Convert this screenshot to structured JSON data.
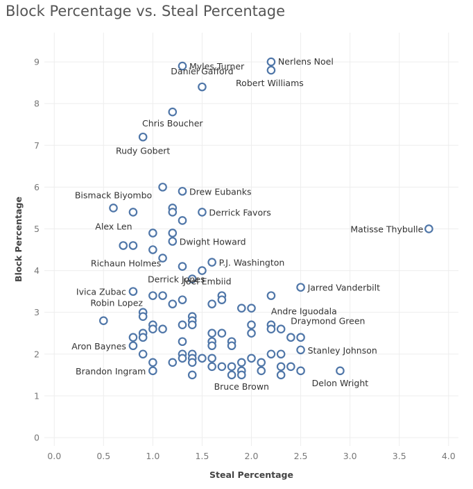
{
  "chart_data": {
    "type": "scatter",
    "title": "Block Percentage vs. Steal Percentage",
    "xlabel": "Steal Percentage",
    "ylabel": "Block Percentage",
    "xlim": [
      -0.1,
      4.1
    ],
    "ylim": [
      -0.2,
      9.7
    ],
    "xticks": [
      "0.0",
      "0.5",
      "1.0",
      "1.5",
      "2.0",
      "2.5",
      "3.0",
      "3.5",
      "4.0"
    ],
    "yticks": [
      "0",
      "1",
      "2",
      "3",
      "4",
      "5",
      "6",
      "7",
      "8",
      "9"
    ],
    "grid": true,
    "legend": "none",
    "marker_color": "#4f76a8",
    "points": [
      {
        "x": 2.2,
        "y": 9.0,
        "label": "Nerlens Noel"
      },
      {
        "x": 1.3,
        "y": 8.9,
        "label": "Myles Turner"
      },
      {
        "x": 2.2,
        "y": 8.8,
        "label": "Robert Williams"
      },
      {
        "x": 1.5,
        "y": 8.4,
        "label": "Daniel Gafford"
      },
      {
        "x": 1.2,
        "y": 7.8,
        "label": "Chris Boucher"
      },
      {
        "x": 0.9,
        "y": 7.2,
        "label": "Rudy Gobert"
      },
      {
        "x": 1.1,
        "y": 6.0,
        "label": ""
      },
      {
        "x": 1.3,
        "y": 5.9,
        "label": "Drew Eubanks"
      },
      {
        "x": 0.6,
        "y": 5.5,
        "label": "Bismack Biyombo"
      },
      {
        "x": 0.8,
        "y": 5.4,
        "label": "Alex Len"
      },
      {
        "x": 1.2,
        "y": 5.5,
        "label": ""
      },
      {
        "x": 1.2,
        "y": 5.4,
        "label": ""
      },
      {
        "x": 1.5,
        "y": 5.4,
        "label": "Derrick Favors"
      },
      {
        "x": 1.3,
        "y": 5.2,
        "label": ""
      },
      {
        "x": 3.8,
        "y": 5.0,
        "label": "Matisse Thybulle"
      },
      {
        "x": 1.0,
        "y": 4.9,
        "label": ""
      },
      {
        "x": 1.2,
        "y": 4.9,
        "label": ""
      },
      {
        "x": 1.2,
        "y": 4.7,
        "label": "Dwight Howard"
      },
      {
        "x": 0.7,
        "y": 4.6,
        "label": ""
      },
      {
        "x": 0.8,
        "y": 4.6,
        "label": ""
      },
      {
        "x": 1.0,
        "y": 4.5,
        "label": ""
      },
      {
        "x": 1.1,
        "y": 4.3,
        "label": "Richaun Holmes"
      },
      {
        "x": 1.6,
        "y": 4.2,
        "label": "P.J. Washington"
      },
      {
        "x": 1.3,
        "y": 4.1,
        "label": ""
      },
      {
        "x": 1.5,
        "y": 4.0,
        "label": ""
      },
      {
        "x": 1.4,
        "y": 3.8,
        "label": "Derrick Jones"
      },
      {
        "x": 2.5,
        "y": 3.6,
        "label": "Jarred Vanderbilt"
      },
      {
        "x": 0.8,
        "y": 3.5,
        "label": "Ivica Zubac"
      },
      {
        "x": 1.0,
        "y": 3.4,
        "label": ""
      },
      {
        "x": 1.1,
        "y": 3.4,
        "label": ""
      },
      {
        "x": 1.7,
        "y": 3.4,
        "label": "Joel Embiid"
      },
      {
        "x": 2.2,
        "y": 3.4,
        "label": ""
      },
      {
        "x": 1.3,
        "y": 3.3,
        "label": ""
      },
      {
        "x": 1.7,
        "y": 3.3,
        "label": ""
      },
      {
        "x": 1.2,
        "y": 3.2,
        "label": ""
      },
      {
        "x": 1.6,
        "y": 3.2,
        "label": ""
      },
      {
        "x": 1.9,
        "y": 3.1,
        "label": ""
      },
      {
        "x": 2.0,
        "y": 3.1,
        "label": ""
      },
      {
        "x": 0.9,
        "y": 3.0,
        "label": "Robin Lopez"
      },
      {
        "x": 0.9,
        "y": 2.9,
        "label": ""
      },
      {
        "x": 1.4,
        "y": 2.9,
        "label": ""
      },
      {
        "x": 0.5,
        "y": 2.8,
        "label": ""
      },
      {
        "x": 1.4,
        "y": 2.8,
        "label": ""
      },
      {
        "x": 1.0,
        "y": 2.7,
        "label": ""
      },
      {
        "x": 1.3,
        "y": 2.7,
        "label": ""
      },
      {
        "x": 1.4,
        "y": 2.7,
        "label": ""
      },
      {
        "x": 2.0,
        "y": 2.7,
        "label": ""
      },
      {
        "x": 2.2,
        "y": 2.7,
        "label": "Andre Iguodala"
      },
      {
        "x": 1.0,
        "y": 2.6,
        "label": ""
      },
      {
        "x": 1.1,
        "y": 2.6,
        "label": ""
      },
      {
        "x": 2.2,
        "y": 2.6,
        "label": ""
      },
      {
        "x": 2.3,
        "y": 2.6,
        "label": "Draymond Green"
      },
      {
        "x": 0.9,
        "y": 2.5,
        "label": ""
      },
      {
        "x": 1.6,
        "y": 2.5,
        "label": ""
      },
      {
        "x": 1.7,
        "y": 2.5,
        "label": ""
      },
      {
        "x": 2.0,
        "y": 2.5,
        "label": ""
      },
      {
        "x": 0.8,
        "y": 2.4,
        "label": ""
      },
      {
        "x": 0.9,
        "y": 2.4,
        "label": ""
      },
      {
        "x": 2.4,
        "y": 2.4,
        "label": ""
      },
      {
        "x": 2.5,
        "y": 2.4,
        "label": ""
      },
      {
        "x": 1.3,
        "y": 2.3,
        "label": ""
      },
      {
        "x": 1.6,
        "y": 2.3,
        "label": ""
      },
      {
        "x": 1.8,
        "y": 2.3,
        "label": ""
      },
      {
        "x": 0.8,
        "y": 2.2,
        "label": "Aron Baynes"
      },
      {
        "x": 1.6,
        "y": 2.2,
        "label": ""
      },
      {
        "x": 1.8,
        "y": 2.2,
        "label": ""
      },
      {
        "x": 2.5,
        "y": 2.1,
        "label": "Stanley Johnson"
      },
      {
        "x": 0.9,
        "y": 2.0,
        "label": ""
      },
      {
        "x": 1.3,
        "y": 2.0,
        "label": ""
      },
      {
        "x": 1.4,
        "y": 2.0,
        "label": ""
      },
      {
        "x": 2.2,
        "y": 2.0,
        "label": ""
      },
      {
        "x": 2.3,
        "y": 2.0,
        "label": ""
      },
      {
        "x": 1.3,
        "y": 1.9,
        "label": ""
      },
      {
        "x": 1.4,
        "y": 1.9,
        "label": ""
      },
      {
        "x": 1.5,
        "y": 1.9,
        "label": ""
      },
      {
        "x": 1.6,
        "y": 1.9,
        "label": ""
      },
      {
        "x": 2.0,
        "y": 1.9,
        "label": ""
      },
      {
        "x": 1.0,
        "y": 1.8,
        "label": ""
      },
      {
        "x": 1.2,
        "y": 1.8,
        "label": ""
      },
      {
        "x": 1.4,
        "y": 1.8,
        "label": ""
      },
      {
        "x": 1.9,
        "y": 1.8,
        "label": ""
      },
      {
        "x": 2.1,
        "y": 1.8,
        "label": ""
      },
      {
        "x": 1.6,
        "y": 1.7,
        "label": ""
      },
      {
        "x": 1.7,
        "y": 1.7,
        "label": ""
      },
      {
        "x": 1.8,
        "y": 1.7,
        "label": ""
      },
      {
        "x": 2.3,
        "y": 1.7,
        "label": ""
      },
      {
        "x": 2.4,
        "y": 1.7,
        "label": ""
      },
      {
        "x": 1.0,
        "y": 1.6,
        "label": "Brandon Ingram"
      },
      {
        "x": 1.9,
        "y": 1.6,
        "label": ""
      },
      {
        "x": 2.1,
        "y": 1.6,
        "label": ""
      },
      {
        "x": 2.5,
        "y": 1.6,
        "label": ""
      },
      {
        "x": 2.9,
        "y": 1.6,
        "label": "Delon Wright"
      },
      {
        "x": 1.4,
        "y": 1.5,
        "label": ""
      },
      {
        "x": 1.8,
        "y": 1.5,
        "label": ""
      },
      {
        "x": 1.9,
        "y": 1.5,
        "label": "Bruce Brown"
      },
      {
        "x": 2.3,
        "y": 1.5,
        "label": ""
      }
    ]
  }
}
